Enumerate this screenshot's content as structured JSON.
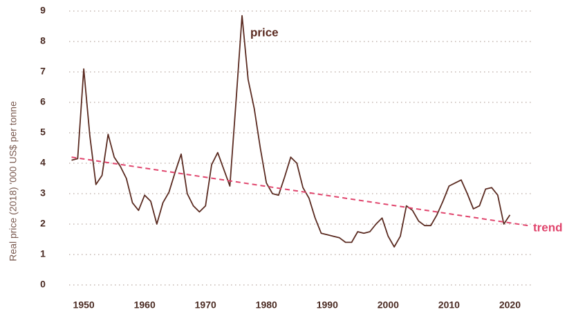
{
  "chart_data": {
    "type": "line",
    "y_label": "Real price (2018) '000 US$ per tonne",
    "annotations": [
      "price",
      "trend"
    ],
    "x": [
      1948,
      1949,
      1950,
      1951,
      1952,
      1953,
      1954,
      1955,
      1956,
      1957,
      1958,
      1959,
      1960,
      1961,
      1962,
      1963,
      1964,
      1965,
      1966,
      1967,
      1968,
      1969,
      1970,
      1971,
      1972,
      1973,
      1974,
      1975,
      1976,
      1977,
      1978,
      1979,
      1980,
      1981,
      1982,
      1983,
      1984,
      1985,
      1986,
      1987,
      1988,
      1989,
      1990,
      1991,
      1992,
      1993,
      1994,
      1995,
      1996,
      1997,
      1998,
      1999,
      2000,
      2001,
      2002,
      2003,
      2004,
      2005,
      2006,
      2007,
      2008,
      2009,
      2010,
      2011,
      2012,
      2013,
      2014,
      2015,
      2016,
      2017,
      2018,
      2019,
      2020
    ],
    "series": [
      {
        "name": "price",
        "color": "#5a2a20",
        "dashed": false,
        "values": [
          4.1,
          4.15,
          7.1,
          4.9,
          3.3,
          3.6,
          4.95,
          4.2,
          3.9,
          3.5,
          2.7,
          2.45,
          2.95,
          2.75,
          2.0,
          2.7,
          3.05,
          3.7,
          4.3,
          3.0,
          2.6,
          2.4,
          2.6,
          3.95,
          4.35,
          3.8,
          3.25,
          6.0,
          8.85,
          6.75,
          5.8,
          4.5,
          3.35,
          3.0,
          2.95,
          3.55,
          4.2,
          4.0,
          3.2,
          2.85,
          2.2,
          1.7,
          1.65,
          1.6,
          1.55,
          1.4,
          1.4,
          1.75,
          1.7,
          1.75,
          2.0,
          2.2,
          1.6,
          1.25,
          1.6,
          2.6,
          2.45,
          2.1,
          1.95,
          1.95,
          2.3,
          2.75,
          3.25,
          3.35,
          3.45,
          3.0,
          2.5,
          2.6,
          3.15,
          3.2,
          2.95,
          2.0,
          2.3
        ]
      },
      {
        "name": "trend",
        "color": "#e0446c",
        "dashed": true,
        "x": [
          1948,
          2023
        ],
        "values": [
          4.2,
          1.95
        ]
      }
    ],
    "xlim": [
      1947.6,
      2023.7
    ],
    "xticks": [
      1950,
      1960,
      1970,
      1980,
      1990,
      2000,
      2010,
      2020
    ],
    "ylim": [
      0,
      9
    ],
    "yticks": [
      0,
      1,
      2,
      3,
      4,
      5,
      6,
      7,
      8,
      9
    ],
    "grid": true
  }
}
